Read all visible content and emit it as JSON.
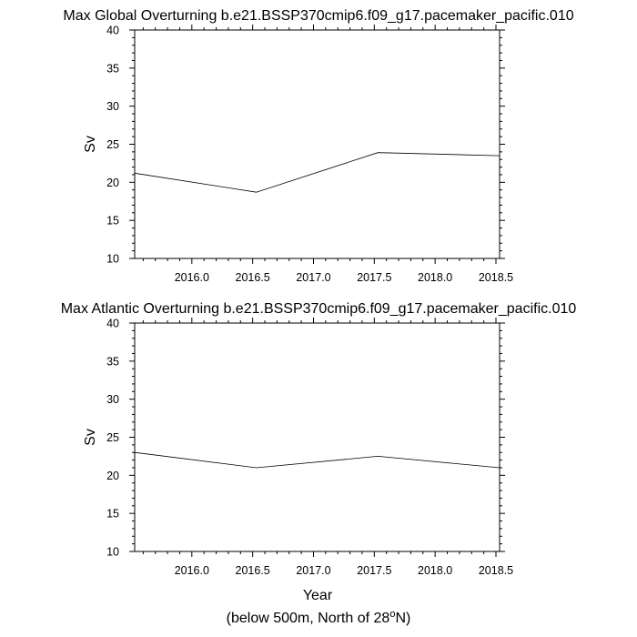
{
  "chart_data": [
    {
      "type": "line",
      "title": "Max Global Overturning b.e21.BSSP370cmip6.f09_g17.pacemaker_pacific.010",
      "ylabel": "Sv",
      "xlabel": "",
      "xlim": [
        2015.53,
        2018.53
      ],
      "ylim": [
        10,
        40
      ],
      "x": [
        2015.53,
        2016.53,
        2017.53,
        2018.53
      ],
      "values": [
        21.2,
        18.7,
        23.9,
        23.5
      ],
      "yticks": [
        "10",
        "15",
        "20",
        "25",
        "30",
        "35",
        "40"
      ],
      "xticks": [
        "2016.0",
        "2016.5",
        "2017.0",
        "2017.5",
        "2018.0",
        "2018.5"
      ]
    },
    {
      "type": "line",
      "title": "Max Atlantic Overturning b.e21.BSSP370cmip6.f09_g17.pacemaker_pacific.010",
      "ylabel": "Sv",
      "xlabel": "Year",
      "xlim": [
        2015.53,
        2018.53
      ],
      "ylim": [
        10,
        40
      ],
      "x": [
        2015.53,
        2016.53,
        2017.53,
        2018.53
      ],
      "values": [
        23.0,
        21.0,
        22.5,
        21.0
      ],
      "yticks": [
        "10",
        "15",
        "20",
        "25",
        "30",
        "35",
        "40"
      ],
      "xticks": [
        "2016.0",
        "2016.5",
        "2017.0",
        "2017.5",
        "2018.0",
        "2018.5"
      ]
    }
  ],
  "footnote": {
    "prefix": "(below 500m, North of 28",
    "degree": "o",
    "suffix": "N)"
  }
}
